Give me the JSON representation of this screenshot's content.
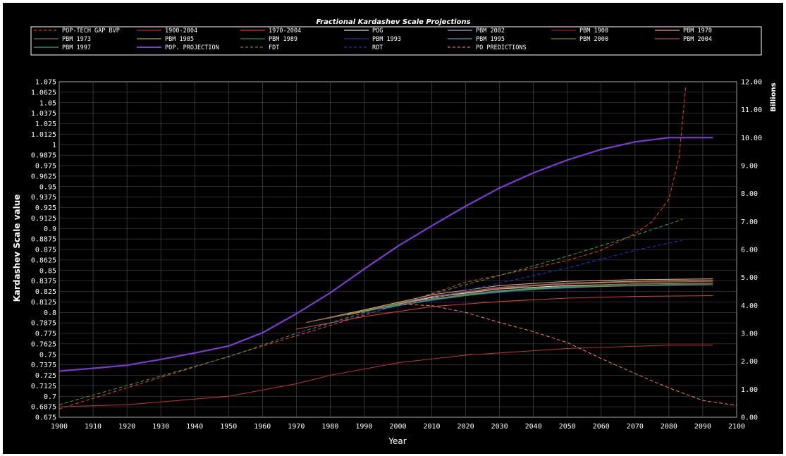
{
  "chart_data": {
    "type": "line",
    "title": "Fractional Kardashev Scale Projections",
    "xlabel": "Year",
    "ylabel": "Kardashev Scale value",
    "y2label": "Billions",
    "xlim": [
      1900,
      2100
    ],
    "ylim": [
      0.675,
      1.075
    ],
    "y2lim": [
      0,
      12
    ],
    "grid": true,
    "legend_position": "top",
    "x_ticks": [
      "1900",
      "1910",
      "1920",
      "1930",
      "1940",
      "1950",
      "1960",
      "1970",
      "1980",
      "1990",
      "2000",
      "2010",
      "2020",
      "2030",
      "2040",
      "2050",
      "2060",
      "2070",
      "2080",
      "2090",
      "2100"
    ],
    "y_ticks": [
      "0.675",
      "0.6875",
      "0.7",
      "0.7125",
      "0.725",
      "0.7375",
      "0.75",
      "0.7625",
      "0.775",
      "0.7875",
      "0.8",
      "0.8125",
      "0.825",
      "0.8375",
      "0.85",
      "0.8625",
      "0.875",
      "0.8875",
      "0.9",
      "0.9125",
      "0.925",
      "0.9375",
      "0.95",
      "0.9625",
      "0.975",
      "0.9875",
      "1",
      "1.0125",
      "1.025",
      "1.0375",
      "1.05",
      "1.0625",
      "1.075"
    ],
    "y2_ticks": [
      "0.00",
      "1.00",
      "2.00",
      "3.00",
      "4.00",
      "5.00",
      "6.00",
      "7.00",
      "8.00",
      "9.00",
      "10.00",
      "11.00",
      "12.00"
    ],
    "series": [
      {
        "name": "POP-TECH GAP BVP",
        "color": "#e03a2a",
        "dash": true,
        "axis": "left",
        "x": [
          1900,
          1950,
          2000,
          2020,
          2040,
          2050,
          2060,
          2070,
          2075,
          2080,
          2083,
          2085
        ],
        "y": [
          0.685,
          0.7475,
          0.809,
          0.836,
          0.853,
          0.862,
          0.874,
          0.894,
          0.908,
          0.935,
          0.985,
          1.07
        ]
      },
      {
        "name": "1900-2004",
        "color": "#b03030",
        "dash": false,
        "axis": "left",
        "x": [
          1900,
          1920,
          1950,
          1970,
          1980,
          2000,
          2020,
          2050,
          2080,
          2093
        ],
        "y": [
          0.6875,
          0.69,
          0.7,
          0.715,
          0.725,
          0.74,
          0.749,
          0.757,
          0.761,
          0.761
        ]
      },
      {
        "name": "1970-2004",
        "color": "#d04030",
        "dash": false,
        "axis": "left",
        "x": [
          1970,
          1990,
          2010,
          2030,
          2050,
          2070,
          2093
        ],
        "y": [
          0.78,
          0.795,
          0.807,
          0.813,
          0.817,
          0.819,
          0.82
        ]
      },
      {
        "name": "POG",
        "color": "#dddddd",
        "dash": false,
        "axis": "left",
        "x": [
          1995,
          2010,
          2030,
          2050,
          2070,
          2093
        ],
        "y": [
          0.806,
          0.818,
          0.828,
          0.832,
          0.834,
          0.835
        ]
      },
      {
        "name": "PBM 2002",
        "color": "#8fb0c8",
        "dash": false,
        "axis": "left",
        "x": [
          1995,
          2010,
          2030,
          2050,
          2070,
          2093
        ],
        "y": [
          0.805,
          0.816,
          0.826,
          0.83,
          0.832,
          0.833
        ]
      },
      {
        "name": "PBM 1900",
        "color": "#8b2222",
        "dash": false,
        "axis": "left",
        "x": [
          1973,
          1990,
          2010,
          2030,
          2050,
          2070,
          2093
        ],
        "y": [
          0.788,
          0.801,
          0.816,
          0.826,
          0.831,
          0.833,
          0.834
        ]
      },
      {
        "name": "PBM 1970",
        "color": "#e0a080",
        "dash": false,
        "axis": "left",
        "x": [
          1973,
          1990,
          2010,
          2030,
          2050,
          2070,
          2093
        ],
        "y": [
          0.788,
          0.803,
          0.821,
          0.832,
          0.837,
          0.839,
          0.84
        ]
      },
      {
        "name": "PBM 1973",
        "color": "#7a7a50",
        "dash": false,
        "axis": "left",
        "x": [
          1973,
          1990,
          2010,
          2030,
          2050,
          2070,
          2093
        ],
        "y": [
          0.788,
          0.802,
          0.819,
          0.83,
          0.835,
          0.837,
          0.838
        ]
      },
      {
        "name": "PBM 1985",
        "color": "#b0a060",
        "dash": false,
        "axis": "left",
        "x": [
          1985,
          2000,
          2020,
          2040,
          2060,
          2080,
          2093
        ],
        "y": [
          0.797,
          0.81,
          0.824,
          0.832,
          0.836,
          0.838,
          0.838
        ]
      },
      {
        "name": "PBM 1989",
        "color": "#2a8a4a",
        "dash": false,
        "axis": "left",
        "x": [
          1989,
          2000,
          2020,
          2040,
          2060,
          2080,
          2093
        ],
        "y": [
          0.8,
          0.809,
          0.822,
          0.829,
          0.833,
          0.835,
          0.835
        ]
      },
      {
        "name": "PBM 1993",
        "color": "#2030a0",
        "dash": false,
        "axis": "left",
        "x": [
          1993,
          2005,
          2020,
          2040,
          2060,
          2080,
          2093
        ],
        "y": [
          0.803,
          0.811,
          0.82,
          0.827,
          0.831,
          0.832,
          0.833
        ]
      },
      {
        "name": "PBM 1995",
        "color": "#6090c0",
        "dash": false,
        "axis": "left",
        "x": [
          1995,
          2005,
          2020,
          2040,
          2060,
          2080,
          2093
        ],
        "y": [
          0.804,
          0.812,
          0.821,
          0.828,
          0.831,
          0.833,
          0.833
        ]
      },
      {
        "name": "PBM 2000",
        "color": "#6a8a40",
        "dash": false,
        "axis": "left",
        "x": [
          2000,
          2010,
          2030,
          2050,
          2070,
          2093
        ],
        "y": [
          0.808,
          0.816,
          0.826,
          0.831,
          0.834,
          0.835
        ]
      },
      {
        "name": "PBM 2004",
        "color": "#c04060",
        "dash": false,
        "axis": "left",
        "x": [
          2000,
          2010,
          2030,
          2050,
          2070,
          2093
        ],
        "y": [
          0.811,
          0.819,
          0.829,
          0.834,
          0.836,
          0.837
        ]
      },
      {
        "name": "PBM 1997",
        "color": "#40a060",
        "dash": false,
        "axis": "left",
        "x": [
          1997,
          2010,
          2030,
          2050,
          2070,
          2093
        ],
        "y": [
          0.806,
          0.815,
          0.825,
          0.83,
          0.832,
          0.833
        ]
      },
      {
        "name": "POP. PROJECTION",
        "color": "#7a3cd0",
        "dash": false,
        "axis": "right",
        "width": 2.2,
        "x": [
          1900,
          1910,
          1920,
          1930,
          1940,
          1950,
          1960,
          1970,
          1980,
          1990,
          2000,
          2010,
          2020,
          2030,
          2040,
          2050,
          2060,
          2070,
          2080,
          2090,
          2093
        ],
        "y": [
          1.65,
          1.75,
          1.86,
          2.07,
          2.3,
          2.55,
          3.02,
          3.7,
          4.45,
          5.3,
          6.12,
          6.85,
          7.55,
          8.2,
          8.74,
          9.2,
          9.58,
          9.85,
          10.0,
          10.0,
          10.0
        ]
      },
      {
        "name": "FDT",
        "color": "#3a9a3a",
        "dash": true,
        "axis": "left",
        "x": [
          1900,
          1950,
          1970,
          1990,
          2010,
          2030,
          2050,
          2070,
          2084
        ],
        "y": [
          0.69,
          0.747,
          0.775,
          0.8,
          0.822,
          0.844,
          0.867,
          0.892,
          0.911
        ]
      },
      {
        "name": "RDT",
        "color": "#2030c0",
        "dash": true,
        "axis": "left",
        "x": [
          1970,
          1990,
          2010,
          2030,
          2050,
          2070,
          2084
        ],
        "y": [
          0.775,
          0.798,
          0.817,
          0.835,
          0.853,
          0.874,
          0.886
        ]
      },
      {
        "name": "PO PREDICTIONS",
        "color": "#e8705a",
        "dash": true,
        "axis": "left",
        "x": [
          2000,
          2010,
          2020,
          2030,
          2040,
          2050,
          2060,
          2070,
          2080,
          2090,
          2100
        ],
        "y": [
          0.81,
          0.808,
          0.8,
          0.788,
          0.777,
          0.764,
          0.745,
          0.727,
          0.71,
          0.695,
          0.689
        ]
      }
    ]
  }
}
